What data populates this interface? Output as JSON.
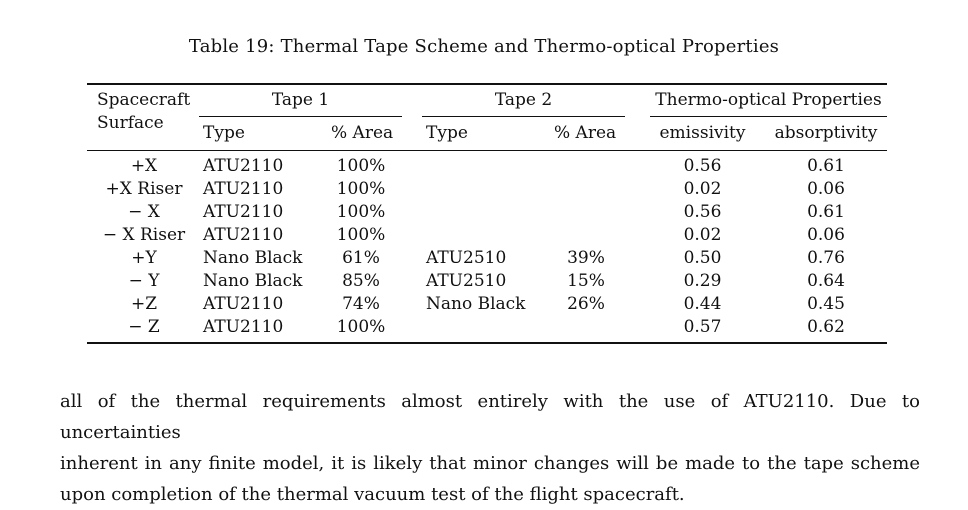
{
  "table": {
    "caption": "Table 19: Thermal Tape Scheme and Thermo-optical Properties",
    "headers": {
      "surface_line1": "Spacecraft",
      "surface_line2": "Surface",
      "tape1": "Tape 1",
      "tape2": "Tape 2",
      "thermo": "Thermo-optical Properties",
      "type1": "Type",
      "area1": "% Area",
      "type2": "Type",
      "area2": "% Area",
      "emissivity": "emissivity",
      "absorptivity": "absorptivity"
    },
    "rows": [
      {
        "surface": "+X",
        "t1_type": "ATU2110",
        "t1_area": "100%",
        "t2_type": "",
        "t2_area": "",
        "emissivity": "0.56",
        "absorptivity": "0.61"
      },
      {
        "surface": "+X Riser",
        "t1_type": "ATU2110",
        "t1_area": "100%",
        "t2_type": "",
        "t2_area": "",
        "emissivity": "0.02",
        "absorptivity": "0.06"
      },
      {
        "surface": "− X",
        "t1_type": "ATU2110",
        "t1_area": "100%",
        "t2_type": "",
        "t2_area": "",
        "emissivity": "0.56",
        "absorptivity": "0.61"
      },
      {
        "surface": "− X Riser",
        "t1_type": "ATU2110",
        "t1_area": "100%",
        "t2_type": "",
        "t2_area": "",
        "emissivity": "0.02",
        "absorptivity": "0.06"
      },
      {
        "surface": "+Y",
        "t1_type": "Nano Black",
        "t1_area": "61%",
        "t2_type": "ATU2510",
        "t2_area": "39%",
        "emissivity": "0.50",
        "absorptivity": "0.76"
      },
      {
        "surface": "− Y",
        "t1_type": "Nano Black",
        "t1_area": "85%",
        "t2_type": "ATU2510",
        "t2_area": "15%",
        "emissivity": "0.29",
        "absorptivity": "0.64"
      },
      {
        "surface": "+Z",
        "t1_type": "ATU2110",
        "t1_area": "74%",
        "t2_type": "Nano Black",
        "t2_area": "26%",
        "emissivity": "0.44",
        "absorptivity": "0.45"
      },
      {
        "surface": "− Z",
        "t1_type": "ATU2110",
        "t1_area": "100%",
        "t2_type": "",
        "t2_area": "",
        "emissivity": "0.57",
        "absorptivity": "0.62"
      }
    ]
  },
  "paragraph": {
    "lines": [
      "all of the thermal requirements almost entirely with the use of ATU2110. Due to uncertainties",
      "inherent in any finite model, it is likely that minor changes will be made to the tape scheme",
      "upon completion of the thermal vacuum test of the flight spacecraft."
    ]
  }
}
